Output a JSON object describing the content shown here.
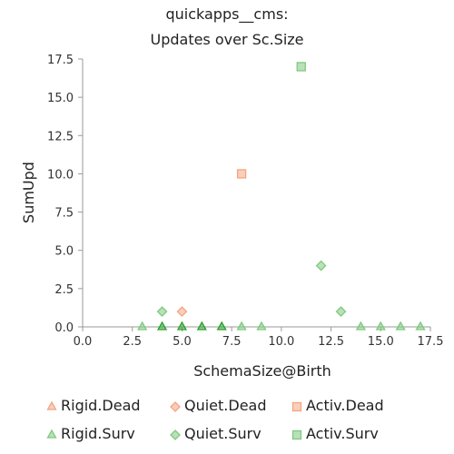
{
  "chart_data": {
    "type": "scatter",
    "title": [
      "quickapps__cms:",
      "Updates over Sc.Size"
    ],
    "xlabel": "SchemaSize@Birth",
    "ylabel": "SumUpd",
    "xlim": [
      0,
      17.5
    ],
    "ylim": [
      0,
      17.5
    ],
    "xticks": [
      "0.0",
      "2.5",
      "5.0",
      "7.5",
      "10.0",
      "12.5",
      "15.0",
      "17.5"
    ],
    "yticks": [
      "0.0",
      "2.5",
      "5.0",
      "7.5",
      "10.0",
      "12.5",
      "15.0",
      "17.5"
    ],
    "grid": false,
    "legend_position": "bottom",
    "series": [
      {
        "name": "Rigid.Dead",
        "marker": "triangle",
        "color": "#f4a582",
        "points": []
      },
      {
        "name": "Quiet.Dead",
        "marker": "diamond",
        "color": "#f4a582",
        "points": [
          [
            5,
            1
          ]
        ]
      },
      {
        "name": "Activ.Dead",
        "marker": "square",
        "color": "#f4a582",
        "points": [
          [
            8,
            10
          ]
        ]
      },
      {
        "name": "Rigid.Surv",
        "marker": "triangle",
        "color": "#7fc97f",
        "points": [
          [
            3,
            0
          ],
          [
            4,
            0
          ],
          [
            5,
            0
          ],
          [
            6,
            0
          ],
          [
            7,
            0
          ],
          [
            8,
            0
          ],
          [
            9,
            0
          ],
          [
            14,
            0
          ],
          [
            15,
            0
          ],
          [
            16,
            0
          ],
          [
            17,
            0
          ]
        ]
      },
      {
        "name": "Quiet.Surv",
        "marker": "diamond",
        "color": "#7fc97f",
        "points": [
          [
            4,
            1
          ],
          [
            12,
            4
          ],
          [
            13,
            1
          ]
        ]
      },
      {
        "name": "Activ.Surv",
        "marker": "square",
        "color": "#7fc97f",
        "points": [
          [
            11,
            17
          ]
        ]
      }
    ]
  }
}
